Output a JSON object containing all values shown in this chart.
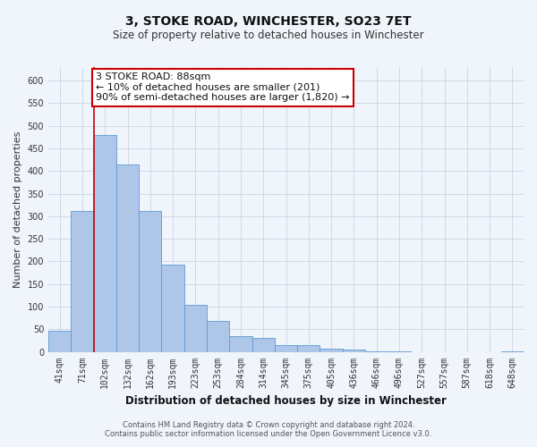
{
  "title": "3, STOKE ROAD, WINCHESTER, SO23 7ET",
  "subtitle": "Size of property relative to detached houses in Winchester",
  "xlabel": "Distribution of detached houses by size in Winchester",
  "ylabel": "Number of detached properties",
  "bar_labels": [
    "41sqm",
    "71sqm",
    "102sqm",
    "132sqm",
    "162sqm",
    "193sqm",
    "223sqm",
    "253sqm",
    "284sqm",
    "314sqm",
    "345sqm",
    "375sqm",
    "405sqm",
    "436sqm",
    "466sqm",
    "496sqm",
    "527sqm",
    "557sqm",
    "587sqm",
    "618sqm",
    "648sqm"
  ],
  "bar_values": [
    46,
    311,
    479,
    414,
    311,
    192,
    104,
    69,
    35,
    30,
    14,
    14,
    8,
    5,
    2,
    1,
    0,
    0,
    0,
    0,
    1
  ],
  "bar_color": "#aec6e8",
  "bar_edge_color": "#5b9bd5",
  "vline_x": 1.5,
  "vline_color": "#cc0000",
  "annotation_text": "3 STOKE ROAD: 88sqm\n← 10% of detached houses are smaller (201)\n90% of semi-detached houses are larger (1,820) →",
  "annotation_box_color": "#ffffff",
  "annotation_box_edge": "#cc0000",
  "ylim": [
    0,
    630
  ],
  "yticks": [
    0,
    50,
    100,
    150,
    200,
    250,
    300,
    350,
    400,
    450,
    500,
    550,
    600
  ],
  "grid_color": "#d0d8e8",
  "footer_line1": "Contains HM Land Registry data © Crown copyright and database right 2024.",
  "footer_line2": "Contains public sector information licensed under the Open Government Licence v3.0.",
  "bg_color": "#f0f4fb",
  "title_fontsize": 10,
  "subtitle_fontsize": 8.5,
  "xlabel_fontsize": 8.5,
  "ylabel_fontsize": 8,
  "tick_fontsize": 7,
  "annotation_fontsize": 8,
  "footer_fontsize": 6
}
